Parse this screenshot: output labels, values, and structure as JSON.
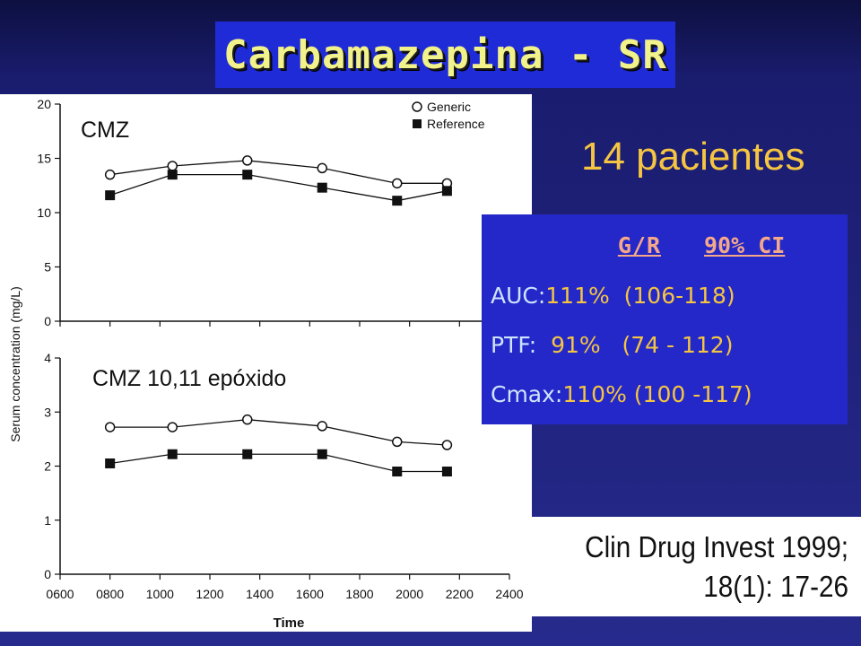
{
  "title": "Carbamazepina - SR",
  "patients_text": "14 pacientes",
  "stats": {
    "header_ratio": "G/R",
    "header_ci": "90% CI",
    "rows": [
      {
        "label": "AUC:",
        "value": "111%  (106-118)"
      },
      {
        "label": "PTF:",
        "value": "  91%   (74 - 112)"
      },
      {
        "label": "Cmax:",
        "value": "110% (100 -117)"
      }
    ]
  },
  "citation": {
    "line1": "Clin Drug Invest 1999;",
    "line2": "18(1): 17-26"
  },
  "colors": {
    "title_bg": "#1f2bd6",
    "title_text": "#f2f28a",
    "stats_bg": "#2428c8",
    "accent_yellow": "#f5c542",
    "header_pink": "#f5a78a"
  },
  "chart_data": [
    {
      "type": "line",
      "label": "CMZ",
      "ylabel": "Serum concentration (mg/L)",
      "ylim": [
        0,
        20
      ],
      "yticks": [
        0,
        5,
        10,
        15,
        20
      ],
      "xlim": [
        600,
        2400
      ],
      "series": [
        {
          "name": "Generic",
          "marker": "open-circle",
          "x": [
            800,
            1050,
            1350,
            1650,
            1950,
            2150
          ],
          "values": [
            13.5,
            14.3,
            14.8,
            14.1,
            12.7,
            12.7
          ]
        },
        {
          "name": "Reference",
          "marker": "filled-square",
          "x": [
            800,
            1050,
            1350,
            1650,
            1950,
            2150
          ],
          "values": [
            11.6,
            13.5,
            13.5,
            12.3,
            11.1,
            12.0
          ]
        }
      ]
    },
    {
      "type": "line",
      "label": "CMZ 10,11 epóxido",
      "xlabel": "Time",
      "ylim": [
        0,
        4
      ],
      "yticks": [
        0,
        1,
        2,
        3,
        4
      ],
      "xlim": [
        600,
        2400
      ],
      "xticks": [
        "0600",
        "0800",
        "1000",
        "1200",
        "1400",
        "1600",
        "1800",
        "2000",
        "2200",
        "2400"
      ],
      "series": [
        {
          "name": "Generic",
          "marker": "open-circle",
          "x": [
            800,
            1050,
            1350,
            1650,
            1950,
            2150
          ],
          "values": [
            2.72,
            2.72,
            2.86,
            2.74,
            2.45,
            2.39
          ]
        },
        {
          "name": "Reference",
          "marker": "filled-square",
          "x": [
            800,
            1050,
            1350,
            1650,
            1950,
            2150
          ],
          "values": [
            2.05,
            2.22,
            2.22,
            2.22,
            1.9,
            1.9
          ]
        }
      ]
    }
  ],
  "legend": {
    "generic": "Generic",
    "reference": "Reference"
  }
}
